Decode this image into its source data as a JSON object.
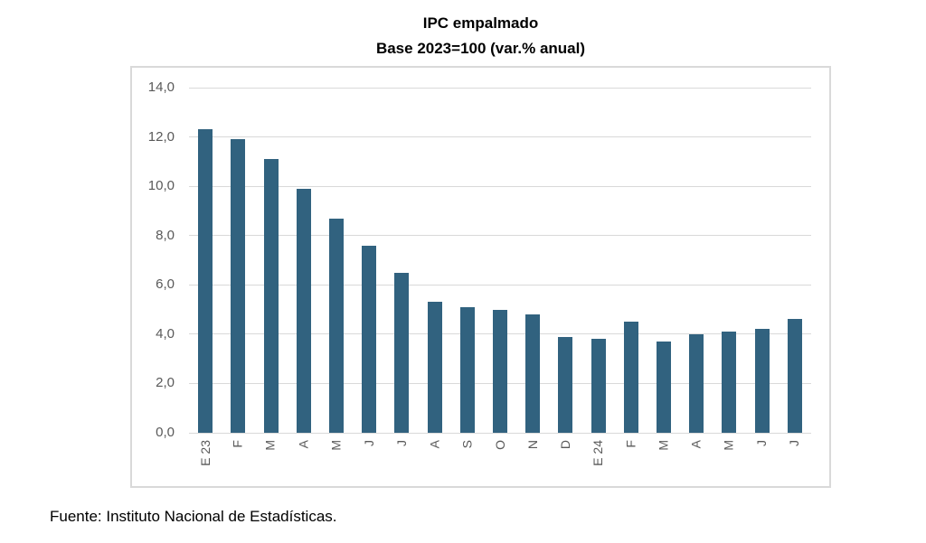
{
  "chart_data": {
    "type": "bar",
    "title": "IPC empalmado",
    "subtitle": "Base 2023=100 (var.% anual)",
    "categories": [
      "E 23",
      "F",
      "M",
      "A",
      "M",
      "J",
      "J",
      "A",
      "S",
      "O",
      "N",
      "D",
      "E 24",
      "F",
      "M",
      "A",
      "M",
      "J",
      "J"
    ],
    "values": [
      12.3,
      11.9,
      11.1,
      9.9,
      8.7,
      7.6,
      6.5,
      5.3,
      5.1,
      5.0,
      4.8,
      3.9,
      3.8,
      4.5,
      3.7,
      4.0,
      4.1,
      4.2,
      4.6
    ],
    "xlabel": "",
    "ylabel": "",
    "ylim": [
      0,
      14
    ],
    "ytick_step": 2,
    "ytick_labels": [
      "0,0",
      "2,0",
      "4,0",
      "6,0",
      "8,0",
      "10,0",
      "12,0",
      "14,0"
    ],
    "grid": true,
    "legend": "none",
    "bar_color": "#31627f",
    "gridline_color": "#d9d9d9",
    "axis_label_color": "#595959",
    "frame_border_color": "#d9d9d9"
  },
  "footer": {
    "source": "Fuente: Instituto Nacional de Estadísticas."
  }
}
